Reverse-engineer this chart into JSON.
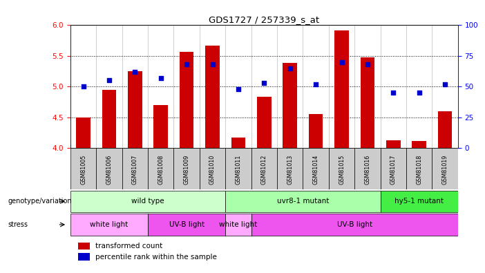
{
  "title": "GDS1727 / 257339_s_at",
  "samples": [
    "GSM81005",
    "GSM81006",
    "GSM81007",
    "GSM81008",
    "GSM81009",
    "GSM81010",
    "GSM81011",
    "GSM81012",
    "GSM81013",
    "GSM81014",
    "GSM81015",
    "GSM81016",
    "GSM81017",
    "GSM81018",
    "GSM81019"
  ],
  "bar_values": [
    4.5,
    4.95,
    5.25,
    4.7,
    5.57,
    5.67,
    4.17,
    4.83,
    5.38,
    4.56,
    5.91,
    5.48,
    4.13,
    4.12,
    4.6
  ],
  "dot_values": [
    50,
    55,
    62,
    57,
    68,
    68,
    48,
    53,
    65,
    52,
    70,
    68,
    45,
    45,
    52
  ],
  "ylim_left": [
    4.0,
    6.0
  ],
  "ylim_right": [
    0,
    100
  ],
  "yticks_left": [
    4.0,
    4.5,
    5.0,
    5.5,
    6.0
  ],
  "yticks_right": [
    0,
    25,
    50,
    75,
    100
  ],
  "hlines": [
    4.5,
    5.0,
    5.5
  ],
  "bar_color": "#cc0000",
  "dot_color": "#0000cc",
  "bar_bottom": 4.0,
  "geno_data": [
    {
      "label": "wild type",
      "start": 0,
      "end": 6,
      "color": "#ccffcc"
    },
    {
      "label": "uvr8-1 mutant",
      "start": 6,
      "end": 12,
      "color": "#aaffaa"
    },
    {
      "label": "hy5-1 mutant",
      "start": 12,
      "end": 15,
      "color": "#44ee44"
    }
  ],
  "stress_data": [
    {
      "label": "white light",
      "start": 0,
      "end": 3,
      "color": "#ffaaff"
    },
    {
      "label": "UV-B light",
      "start": 3,
      "end": 6,
      "color": "#ee55ee"
    },
    {
      "label": "white light",
      "start": 6,
      "end": 7,
      "color": "#ffaaff"
    },
    {
      "label": "UV-B light",
      "start": 7,
      "end": 15,
      "color": "#ee55ee"
    }
  ],
  "sample_bg": "#cccccc",
  "legend_bar_color": "#cc0000",
  "legend_dot_color": "#0000cc",
  "legend_bar_label": "transformed count",
  "legend_dot_label": "percentile rank within the sample",
  "geno_label": "genotype/variation",
  "stress_label": "stress"
}
